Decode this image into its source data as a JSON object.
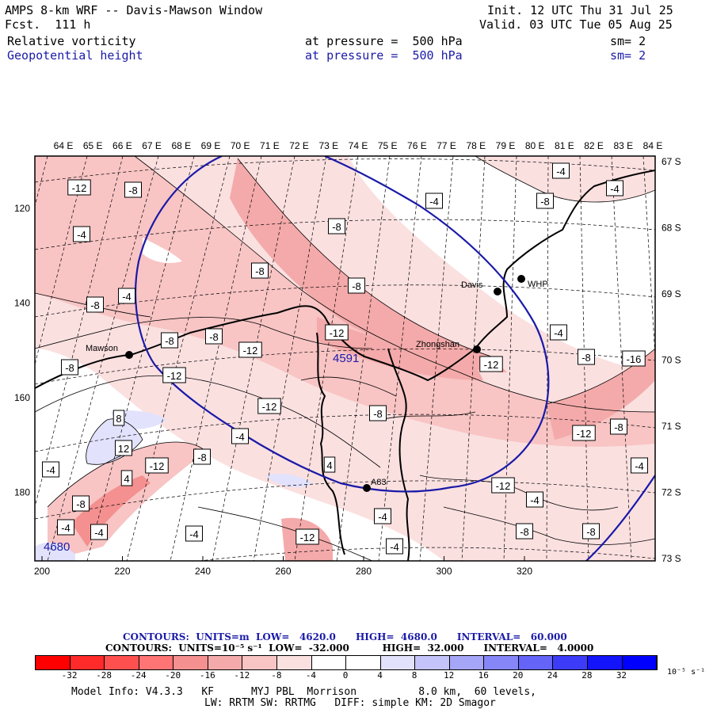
{
  "header": {
    "title": "AMPS 8-km WRF -- Davis-Mawson Window",
    "forecast": "Fcst.  111 h",
    "init": "Init. 12 UTC Thu 31 Jul 25",
    "valid": "Valid. 03 UTC Tue 05 Aug 25",
    "field1": "Relative vorticity",
    "field1_level": "at pressure =  500 hPa",
    "field1_sm": "sm= 2",
    "field2": "Geopotential height",
    "field2_level": "at pressure =  500 hPa",
    "field2_sm": "sm= 2"
  },
  "map": {
    "lon_labels": [
      "64 E",
      "65 E",
      "66 E",
      "67 E",
      "68 E",
      "69 E",
      "70 E",
      "71 E",
      "72 E",
      "73 E",
      "74 E",
      "75 E",
      "76 E",
      "77 E",
      "78 E",
      "79 E",
      "80 E",
      "81 E",
      "82 E",
      "83 E",
      "84 E"
    ],
    "lat_labels": [
      "67 S",
      "68 S",
      "69 S",
      "70 S",
      "71 S",
      "72 S",
      "73 S"
    ],
    "x_ticks": [
      "200",
      "220",
      "240",
      "260",
      "280",
      "300",
      "320"
    ],
    "y_ticks": [
      "120",
      "140",
      "160",
      "180"
    ],
    "stations": [
      {
        "name": "Mawson"
      },
      {
        "name": "Davis"
      },
      {
        "name": "WHP"
      },
      {
        "name": "Zhongshan"
      },
      {
        "name": "A83"
      }
    ],
    "height_labels": [
      "4591",
      "4680"
    ],
    "contour_labels": [
      "-12",
      "-8",
      "-4",
      "-8",
      "-4",
      "-4",
      "-4",
      "-8",
      "-4",
      "-8",
      "-8",
      "-8",
      "-12",
      "-8",
      "-8",
      "-12",
      "-12",
      "-8",
      "-12",
      "-8",
      "-16",
      "-8",
      "-12",
      "-8",
      "8",
      "12",
      "4",
      "-12",
      "-8",
      "-4",
      "-8",
      "4",
      "-4",
      "-12",
      "-4",
      "-8",
      "-4",
      "-12",
      "-4",
      "-4",
      "-4",
      "-4",
      "-4",
      "-8",
      "-4",
      "-12"
    ]
  },
  "footer": {
    "contours1": "CONTOURS:  UNITS=m  LOW=   4620.0      HIGH=  4680.0      INTERVAL=   60.000",
    "contours2": "CONTOURS:  UNITS=10⁻⁵ s⁻¹  LOW=  -32.000          HIGH=  32.000      INTERVAL=   4.0000",
    "colorbar_ticks": [
      "-32",
      "-28",
      "-24",
      "-20",
      "-16",
      "-12",
      "-8",
      "-4",
      "0",
      "4",
      "8",
      "12",
      "16",
      "20",
      "24",
      "28",
      "32"
    ],
    "colorbar_unit": "10⁻⁵ s⁻¹",
    "colorbar_colors": [
      "#ff0000",
      "#ff2a2a",
      "#ff5050",
      "#ff7474",
      "#f49090",
      "#f4aaaa",
      "#f8c4c4",
      "#fbe0e0",
      "#ffffff",
      "#ffffff",
      "#e2e2fc",
      "#c4c4fa",
      "#a6a6f8",
      "#8686f8",
      "#6464f8",
      "#3c3cf8",
      "#1414fa",
      "#0000ff"
    ],
    "model_info": "Model Info: V4.3.3   KF      MYJ PBL  Morrison          8.0 km,  60 levels,",
    "model_info2": "LW: RRTM SW: RRTMG   DIFF: simple KM: 2D Smagor"
  }
}
